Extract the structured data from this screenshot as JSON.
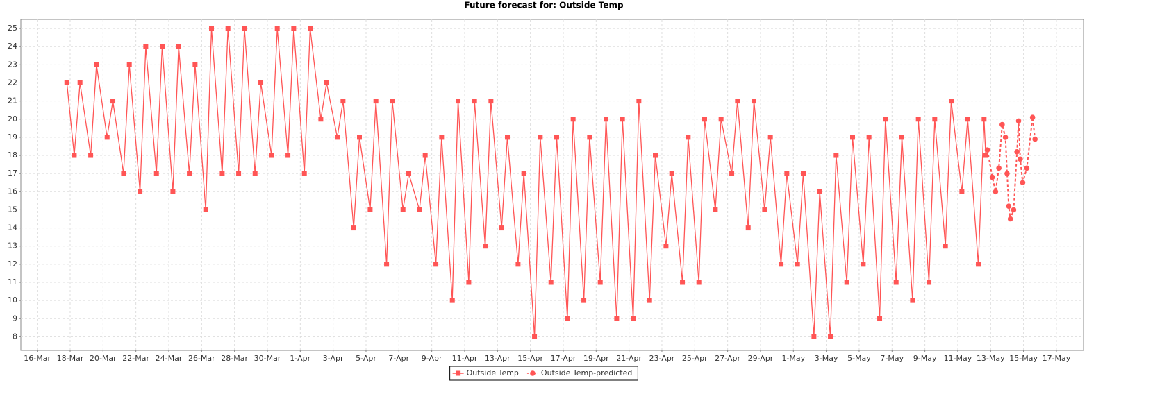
{
  "chart_data": {
    "type": "line",
    "title": "Future forecast for: Outside Temp",
    "xlim": [
      -1,
      63.65
    ],
    "ylim": [
      7.25,
      25.5
    ],
    "xticks": [
      {
        "value": 0,
        "label": "16-Mar"
      },
      {
        "value": 2,
        "label": "18-Mar"
      },
      {
        "value": 4,
        "label": "20-Mar"
      },
      {
        "value": 6,
        "label": "22-Mar"
      },
      {
        "value": 8,
        "label": "24-Mar"
      },
      {
        "value": 10,
        "label": "26-Mar"
      },
      {
        "value": 12,
        "label": "28-Mar"
      },
      {
        "value": 14,
        "label": "30-Mar"
      },
      {
        "value": 16,
        "label": "1-Apr"
      },
      {
        "value": 18,
        "label": "3-Apr"
      },
      {
        "value": 20,
        "label": "5-Apr"
      },
      {
        "value": 22,
        "label": "7-Apr"
      },
      {
        "value": 24,
        "label": "9-Apr"
      },
      {
        "value": 26,
        "label": "11-Apr"
      },
      {
        "value": 28,
        "label": "13-Apr"
      },
      {
        "value": 30,
        "label": "15-Apr"
      },
      {
        "value": 32,
        "label": "17-Apr"
      },
      {
        "value": 34,
        "label": "19-Apr"
      },
      {
        "value": 36,
        "label": "21-Apr"
      },
      {
        "value": 38,
        "label": "23-Apr"
      },
      {
        "value": 40,
        "label": "25-Apr"
      },
      {
        "value": 42,
        "label": "27-Apr"
      },
      {
        "value": 44,
        "label": "29-Apr"
      },
      {
        "value": 46,
        "label": "1-May"
      },
      {
        "value": 48,
        "label": "3-May"
      },
      {
        "value": 50,
        "label": "5-May"
      },
      {
        "value": 52,
        "label": "7-May"
      },
      {
        "value": 54,
        "label": "9-May"
      },
      {
        "value": 56,
        "label": "11-May"
      },
      {
        "value": 58,
        "label": "13-May"
      },
      {
        "value": 60,
        "label": "15-May"
      },
      {
        "value": 62,
        "label": "17-May"
      }
    ],
    "yticks": [
      8,
      9,
      10,
      11,
      12,
      13,
      14,
      15,
      16,
      17,
      18,
      19,
      20,
      21,
      22,
      23,
      24,
      25
    ],
    "grid": true,
    "series": [
      {
        "name": "Outside Temp",
        "color": "#ff5555",
        "marker": "square",
        "dashed": false,
        "x": [
          1.8,
          2.25,
          2.6,
          3.25,
          3.6,
          4.25,
          4.6,
          5.25,
          5.6,
          6.25,
          6.6,
          7.25,
          7.6,
          8.25,
          8.6,
          9.25,
          9.6,
          10.25,
          10.6,
          11.25,
          11.6,
          12.25,
          12.6,
          13.25,
          13.6,
          14.25,
          14.6,
          15.25,
          15.6,
          16.25,
          16.6,
          17.25,
          17.6,
          18.25,
          18.6,
          19.25,
          19.6,
          20.25,
          20.6,
          21.25,
          21.6,
          22.25,
          22.6,
          23.25,
          23.6,
          24.25,
          24.6,
          25.25,
          25.6,
          26.25,
          26.6,
          27.25,
          27.6,
          28.25,
          28.6,
          29.25,
          29.6,
          30.25,
          30.6,
          31.25,
          31.6,
          32.25,
          32.6,
          33.25,
          33.6,
          34.25,
          34.6,
          35.25,
          35.6,
          36.25,
          36.6,
          37.25,
          37.6,
          38.25,
          38.6,
          39.25,
          39.6,
          40.25,
          40.6,
          41.25,
          41.6,
          42.25,
          42.6,
          43.25,
          43.6,
          44.25,
          44.6,
          45.25,
          45.6,
          46.25,
          46.6,
          47.25,
          47.6,
          48.25,
          48.6,
          49.25,
          49.6,
          50.25,
          50.6,
          51.25,
          51.6,
          52.25,
          52.6,
          53.25,
          53.6,
          54.25,
          54.6,
          55.25,
          55.6,
          56.25,
          56.6,
          57.25,
          57.6,
          57.7
        ],
        "values": [
          22,
          18,
          22,
          18,
          23,
          19,
          21,
          17,
          23,
          16,
          24,
          17,
          24,
          16,
          24,
          17,
          23,
          15,
          25,
          17,
          25,
          17,
          25,
          17,
          22,
          18,
          25,
          18,
          25,
          17,
          25,
          20,
          22,
          19,
          21,
          14,
          19,
          15,
          21,
          12,
          21,
          15,
          17,
          15,
          18,
          12,
          19,
          10,
          21,
          11,
          21,
          13,
          21,
          14,
          19,
          12,
          17,
          8,
          19,
          11,
          19,
          9,
          20,
          10,
          19,
          11,
          20,
          9,
          20,
          9,
          21,
          10,
          18,
          13,
          17,
          11,
          19,
          11,
          20,
          15,
          20,
          17,
          21,
          14,
          21,
          15,
          19,
          12,
          17,
          12,
          17,
          8,
          16,
          8,
          18,
          11,
          19,
          12,
          19,
          9,
          20,
          11,
          19,
          10,
          20,
          11,
          20,
          13,
          21,
          16,
          20,
          12,
          20,
          18
        ]
      },
      {
        "name": "Outside Temp-predicted",
        "color": "#ff5555",
        "marker": "circle",
        "dashed": true,
        "x": [
          57.8,
          58.1,
          58.3,
          58.5,
          58.7,
          58.9,
          59.0,
          59.1,
          59.2,
          59.4,
          59.6,
          59.7,
          59.8,
          59.95,
          60.2,
          60.55,
          60.7
        ],
        "values": [
          18.3,
          16.8,
          16,
          17.3,
          19.7,
          19,
          17,
          15.2,
          14.5,
          15,
          18.2,
          19.9,
          17.8,
          16.5,
          17.3,
          20.1,
          18.9
        ]
      }
    ]
  }
}
